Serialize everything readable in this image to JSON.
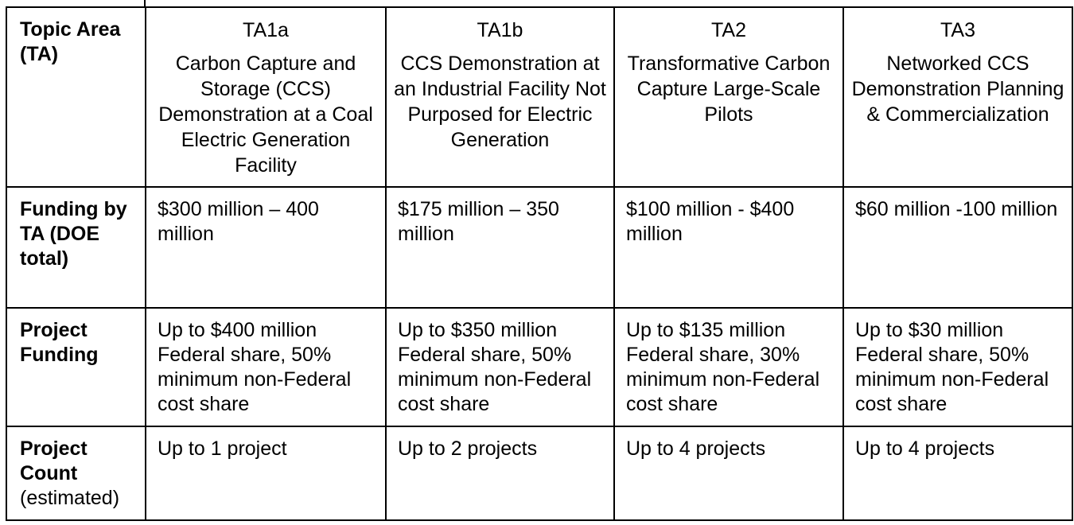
{
  "table": {
    "header_row": {
      "label": "Topic Area",
      "label_sub": "(TA)",
      "columns": [
        {
          "code": "TA1a",
          "title": "Carbon Capture and Storage (CCS) Demonstration at a Coal Electric Generation Facility"
        },
        {
          "code": "TA1b",
          "title": "CCS Demonstration at an Industrial Facility Not Purposed for Electric Generation"
        },
        {
          "code": "TA2",
          "title": "Transformative Carbon Capture Large-Scale Pilots"
        },
        {
          "code": "TA3",
          "title": "Networked CCS Demonstration Planning & Commercialization"
        }
      ]
    },
    "rows": [
      {
        "label": "Funding by TA (DOE total)",
        "label_sub": "",
        "cells": [
          "$300 million – 400 million",
          "$175 million – 350 million",
          "$100 million - $400 million",
          "$60 million -100 million"
        ]
      },
      {
        "label": "Project Funding",
        "label_sub": "",
        "cells": [
          "Up to $400 million Federal share, 50% minimum non-Federal cost share",
          "Up to $350 million Federal share, 50% minimum non-Federal cost share",
          "Up to $135 million Federal share, 30% minimum non-Federal cost share",
          "Up to $30 million Federal share, 50% minimum non-Federal cost share"
        ]
      },
      {
        "label": "Project Count",
        "label_sub": "(estimated)",
        "cells": [
          "Up to 1 project",
          "Up to 2 projects",
          "Up to 4 projects",
          "Up to 4 projects"
        ]
      }
    ]
  }
}
